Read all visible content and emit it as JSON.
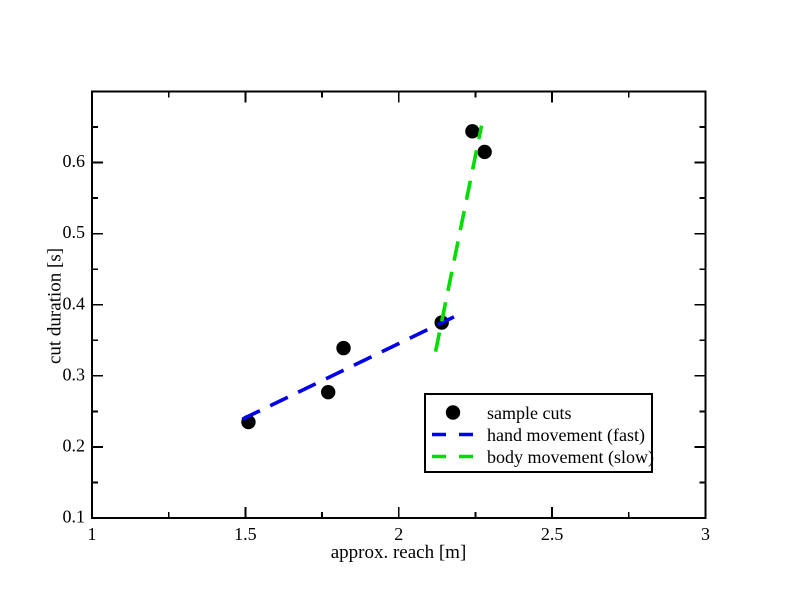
{
  "page": {
    "background": "#ffffff"
  },
  "chart_data": {
    "type": "scatter",
    "title": "",
    "xlabel": "approx. reach [m]",
    "ylabel": "cut duration [s]",
    "xlim": [
      1,
      3
    ],
    "ylim": [
      0.1,
      0.7
    ],
    "grid": false,
    "frame_color": "#000000",
    "x_ticks": {
      "major": [
        1,
        1.5,
        2,
        2.5,
        3
      ],
      "major_labels": [
        "1",
        "1.5",
        "2",
        "2.5",
        "3"
      ],
      "minor": [
        1.25,
        1.75,
        2.25,
        2.75
      ]
    },
    "y_ticks": {
      "major": [
        0.1,
        0.2,
        0.3,
        0.4,
        0.5,
        0.6
      ],
      "major_labels": [
        "0.1",
        "0.2",
        "0.3",
        "0.4",
        "0.5",
        "0.6"
      ],
      "minor": [
        0.15,
        0.25,
        0.35,
        0.45,
        0.55,
        0.65
      ]
    },
    "series": [
      {
        "name": "sample cuts",
        "kind": "scatter",
        "marker": "filled-circle",
        "color": "#000000",
        "points": [
          [
            1.51,
            0.235
          ],
          [
            1.77,
            0.277
          ],
          [
            1.82,
            0.339
          ],
          [
            2.14,
            0.375
          ],
          [
            2.24,
            0.644
          ],
          [
            2.28,
            0.615
          ]
        ]
      },
      {
        "name": "hand movement (fast)",
        "kind": "line",
        "style": "dashed",
        "color": "#0000ee",
        "points": [
          [
            1.49,
            0.239
          ],
          [
            2.18,
            0.383
          ]
        ]
      },
      {
        "name": "body movement (slow)",
        "kind": "line",
        "style": "dashed",
        "color": "#00dd00",
        "points": [
          [
            2.12,
            0.334
          ],
          [
            2.27,
            0.652
          ]
        ]
      }
    ],
    "legend": {
      "position": "inside-right-middle",
      "entries": [
        "sample cuts",
        "hand movement (fast)",
        "body movement (slow)"
      ]
    }
  }
}
